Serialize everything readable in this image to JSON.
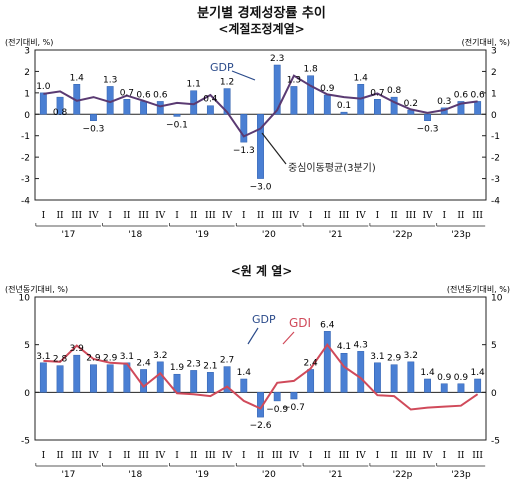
{
  "page": {
    "title": "분기별 경제성장률 추이",
    "subtitle": "<계절조정계열>"
  },
  "colors": {
    "bar": "#4a7fd3",
    "bar_edge": "#2f5fae",
    "gdp_line": "#5a3a72",
    "gdi_line": "#d04a5a",
    "axis": "#222222",
    "grid": "#bbbbbb"
  },
  "chart_data": [
    {
      "type": "bar",
      "title": "<계절조정계열>",
      "ylabel_left": "(전기대비, %)",
      "ylabel_right": "(전기대비, %)",
      "ylim": [
        -4,
        3
      ],
      "yticks": [
        -4,
        -3,
        -2,
        -1,
        0,
        1,
        2,
        3
      ],
      "x_quarters": [
        "I",
        "II",
        "III",
        "IV",
        "I",
        "II",
        "III",
        "IV",
        "I",
        "II",
        "III",
        "IV",
        "I",
        "II",
        "III",
        "IV",
        "I",
        "II",
        "III",
        "IV",
        "I",
        "II",
        "III",
        "IV",
        "I",
        "II",
        "III"
      ],
      "x_years": [
        "'17",
        "'18",
        "'19",
        "'20",
        "'21",
        "'22p",
        "'23p"
      ],
      "series": [
        {
          "name": "GDP",
          "type": "bar",
          "values": [
            1.0,
            0.8,
            1.4,
            -0.3,
            1.3,
            0.7,
            0.6,
            0.6,
            -0.1,
            1.1,
            0.4,
            1.2,
            -1.3,
            -3.0,
            2.3,
            1.3,
            1.8,
            0.9,
            0.1,
            1.4,
            0.7,
            0.8,
            0.2,
            -0.3,
            0.3,
            0.6,
            0.6
          ],
          "labels": [
            "1.0",
            "0.8",
            "1.4",
            "−0.3",
            "1.3",
            "0.7",
            "0.6",
            "0.6",
            "−0.1",
            "1.1",
            "0.4",
            "1.2",
            "−1.3",
            "−3.0",
            "2.3",
            "1.3",
            "1.8",
            "0.9",
            "0.1",
            "1.4",
            "0.7",
            "0.8",
            "0.2",
            "−0.3",
            "0.3",
            "0.6",
            "0.6"
          ]
        },
        {
          "name": "중심이동평균(3분기)",
          "type": "line",
          "values": [
            0.95,
            1.07,
            0.63,
            0.8,
            0.57,
            0.87,
            0.63,
            0.37,
            0.53,
            0.47,
            0.9,
            0.1,
            -1.03,
            -0.67,
            0.2,
            1.8,
            1.33,
            0.93,
            0.8,
            0.73,
            0.97,
            0.57,
            0.23,
            0.07,
            0.2,
            0.5,
            0.6
          ]
        }
      ]
    },
    {
      "type": "bar",
      "title": "<원 계 열>",
      "ylabel_left": "(전년동기대비, %)",
      "ylabel_right": "(전년동기대비, %)",
      "ylim": [
        -5,
        10
      ],
      "yticks": [
        -5,
        0,
        5,
        10
      ],
      "x_quarters": [
        "I",
        "II",
        "III",
        "IV",
        "I",
        "II",
        "III",
        "IV",
        "I",
        "II",
        "III",
        "IV",
        "I",
        "II",
        "III",
        "IV",
        "I",
        "II",
        "III",
        "IV",
        "I",
        "II",
        "III",
        "IV",
        "I",
        "II",
        "III"
      ],
      "x_years": [
        "'17",
        "'18",
        "'19",
        "'20",
        "'21",
        "'22p",
        "'23p"
      ],
      "series": [
        {
          "name": "GDP",
          "type": "bar",
          "values": [
            3.1,
            2.8,
            3.9,
            2.9,
            2.9,
            3.1,
            2.4,
            3.2,
            1.9,
            2.3,
            2.1,
            2.7,
            1.4,
            -2.6,
            -0.9,
            -0.7,
            2.4,
            6.4,
            4.1,
            4.3,
            3.1,
            2.9,
            3.2,
            1.4,
            0.9,
            0.9,
            1.4
          ],
          "labels": [
            "3.1",
            "2.8",
            "3.9",
            "2.9",
            "2.9",
            "3.1",
            "2.4",
            "3.2",
            "1.9",
            "2.3",
            "2.1",
            "2.7",
            "1.4",
            "−2.6",
            "−0.9",
            "−0.7",
            "2.4",
            "6.4",
            "4.1",
            "4.3",
            "3.1",
            "2.9",
            "3.2",
            "1.4",
            "0.9",
            "0.9",
            "1.4"
          ]
        },
        {
          "name": "GDI",
          "type": "line",
          "values": [
            3.3,
            3.2,
            4.9,
            3.5,
            3.1,
            3.0,
            0.6,
            2.0,
            -0.1,
            -0.2,
            -0.4,
            0.6,
            -0.9,
            -1.7,
            1.0,
            1.2,
            2.5,
            5.0,
            2.7,
            1.5,
            -0.3,
            -0.4,
            -1.8,
            -1.6,
            -1.5,
            -1.4,
            -0.2
          ]
        }
      ]
    }
  ],
  "chart2_title": "<원 계 열>",
  "annotations": {
    "c1_gdp": "GDP",
    "c1_ma": "중심이동평균(3분기)",
    "c2_gdp": "GDP",
    "c2_gdi": "GDI"
  }
}
